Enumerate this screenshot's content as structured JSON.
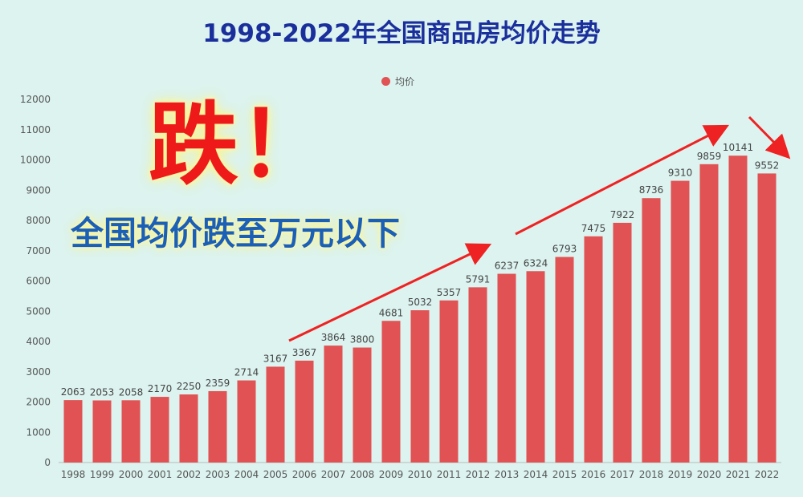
{
  "title": "1998-2022年全国商品房均价走势",
  "overlay": {
    "headline": "跌！",
    "subheadline": "全国均价跌至万元以下"
  },
  "colors": {
    "bar": "#e05253",
    "title": "#1b2f9c",
    "arrow": "#ee2222",
    "background": "#dcf3ef"
  },
  "chart_data": {
    "type": "bar",
    "title": "1998-2022年全国商品房均价走势",
    "xlabel": "",
    "ylabel": "",
    "ylim": [
      0,
      12000
    ],
    "yticks": [
      0,
      1000,
      2000,
      3000,
      4000,
      5000,
      6000,
      7000,
      8000,
      9000,
      10000,
      11000,
      12000
    ],
    "grid": false,
    "legend_position": "top-center",
    "categories": [
      "1998",
      "1999",
      "2000",
      "2001",
      "2002",
      "2003",
      "2004",
      "2005",
      "2006",
      "2007",
      "2008",
      "2009",
      "2010",
      "2011",
      "2012",
      "2013",
      "2014",
      "2015",
      "2016",
      "2017",
      "2018",
      "2019",
      "2020",
      "2021",
      "2022"
    ],
    "series": [
      {
        "name": "均价",
        "values": [
          2063,
          2053,
          2058,
          2170,
          2250,
          2359,
          2714,
          3167,
          3367,
          3864,
          3800,
          4681,
          5032,
          5357,
          5791,
          6237,
          6324,
          6793,
          7475,
          7922,
          8736,
          9310,
          9859,
          10141,
          9552
        ]
      }
    ],
    "annotations": [
      "up-trend arrow 2006–2013",
      "up-trend arrow 2014–2021",
      "down arrow 2021–2022"
    ]
  }
}
